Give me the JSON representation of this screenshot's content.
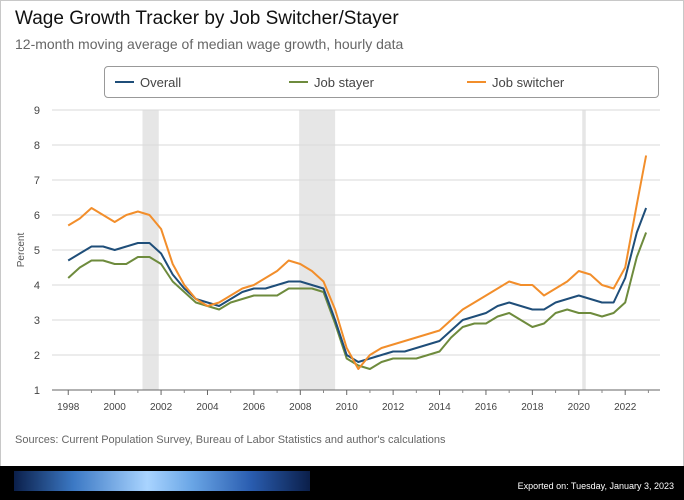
{
  "header": {
    "title": "Wage Growth Tracker by Job Switcher/Stayer",
    "subtitle": "12-month moving average of median wage growth, hourly data"
  },
  "legend": {
    "items": [
      {
        "label": "Overall",
        "color": "#1f4e79"
      },
      {
        "label": "Job stayer",
        "color": "#6e8b3d"
      },
      {
        "label": "Job switcher",
        "color": "#f28e2b"
      }
    ]
  },
  "footer": {
    "source": "Sources: Current Population Survey, Bureau of Labor Statistics and author's calculations",
    "export": "Exported on: Tuesday, January 3, 2023"
  },
  "chart_data": {
    "type": "line",
    "ylabel": "Percent",
    "xlim": [
      1997.3,
      2023.5
    ],
    "ylim": [
      1,
      9
    ],
    "yticks": [
      1,
      2,
      3,
      4,
      5,
      6,
      7,
      8,
      9
    ],
    "xticks": [
      "1998",
      "2000",
      "2002",
      "2004",
      "2006",
      "2008",
      "2010",
      "2012",
      "2014",
      "2016",
      "2018",
      "2020",
      "2022"
    ],
    "grid": true,
    "recessions": [
      [
        2001.2,
        2001.9
      ],
      [
        2007.95,
        2009.5
      ],
      [
        2020.15,
        2020.3
      ]
    ],
    "series": [
      {
        "name": "Overall",
        "color": "#1f4e79",
        "x": [
          1998,
          1998.5,
          1999,
          1999.5,
          2000,
          2000.5,
          2001,
          2001.5,
          2002,
          2002.5,
          2003,
          2003.5,
          2004,
          2004.5,
          2005,
          2005.5,
          2006,
          2006.5,
          2007,
          2007.5,
          2008,
          2008.5,
          2009,
          2009.5,
          2010,
          2010.5,
          2011,
          2011.5,
          2012,
          2012.5,
          2013,
          2013.5,
          2014,
          2014.5,
          2015,
          2015.5,
          2016,
          2016.5,
          2017,
          2017.5,
          2018,
          2018.5,
          2019,
          2019.5,
          2020,
          2020.5,
          2021,
          2021.5,
          2022,
          2022.5,
          2022.9
        ],
        "values": [
          4.7,
          4.9,
          5.1,
          5.1,
          5.0,
          5.1,
          5.2,
          5.2,
          4.9,
          4.3,
          3.9,
          3.6,
          3.5,
          3.4,
          3.6,
          3.8,
          3.9,
          3.9,
          4.0,
          4.1,
          4.1,
          4.0,
          3.9,
          3.0,
          2.0,
          1.8,
          1.9,
          2.0,
          2.1,
          2.1,
          2.2,
          2.3,
          2.4,
          2.7,
          3.0,
          3.1,
          3.2,
          3.4,
          3.5,
          3.4,
          3.3,
          3.3,
          3.5,
          3.6,
          3.7,
          3.6,
          3.5,
          3.5,
          4.2,
          5.5,
          6.2
        ]
      },
      {
        "name": "Job stayer",
        "color": "#6e8b3d",
        "x": [
          1998,
          1998.5,
          1999,
          1999.5,
          2000,
          2000.5,
          2001,
          2001.5,
          2002,
          2002.5,
          2003,
          2003.5,
          2004,
          2004.5,
          2005,
          2005.5,
          2006,
          2006.5,
          2007,
          2007.5,
          2008,
          2008.5,
          2009,
          2009.5,
          2010,
          2010.5,
          2011,
          2011.5,
          2012,
          2012.5,
          2013,
          2013.5,
          2014,
          2014.5,
          2015,
          2015.5,
          2016,
          2016.5,
          2017,
          2017.5,
          2018,
          2018.5,
          2019,
          2019.5,
          2020,
          2020.5,
          2021,
          2021.5,
          2022,
          2022.5,
          2022.9
        ],
        "values": [
          4.2,
          4.5,
          4.7,
          4.7,
          4.6,
          4.6,
          4.8,
          4.8,
          4.6,
          4.1,
          3.8,
          3.5,
          3.4,
          3.3,
          3.5,
          3.6,
          3.7,
          3.7,
          3.7,
          3.9,
          3.9,
          3.9,
          3.8,
          2.9,
          1.9,
          1.7,
          1.6,
          1.8,
          1.9,
          1.9,
          1.9,
          2.0,
          2.1,
          2.5,
          2.8,
          2.9,
          2.9,
          3.1,
          3.2,
          3.0,
          2.8,
          2.9,
          3.2,
          3.3,
          3.2,
          3.2,
          3.1,
          3.2,
          3.5,
          4.8,
          5.5
        ]
      },
      {
        "name": "Job switcher",
        "color": "#f28e2b",
        "x": [
          1998,
          1998.5,
          1999,
          1999.5,
          2000,
          2000.5,
          2001,
          2001.5,
          2002,
          2002.5,
          2003,
          2003.5,
          2004,
          2004.5,
          2005,
          2005.5,
          2006,
          2006.5,
          2007,
          2007.5,
          2008,
          2008.5,
          2009,
          2009.5,
          2010,
          2010.5,
          2011,
          2011.5,
          2012,
          2012.5,
          2013,
          2013.5,
          2014,
          2014.5,
          2015,
          2015.5,
          2016,
          2016.5,
          2017,
          2017.5,
          2018,
          2018.5,
          2019,
          2019.5,
          2020,
          2020.5,
          2021,
          2021.5,
          2022,
          2022.5,
          2022.9
        ],
        "values": [
          5.7,
          5.9,
          6.2,
          6.0,
          5.8,
          6.0,
          6.1,
          6.0,
          5.6,
          4.6,
          4.0,
          3.6,
          3.4,
          3.5,
          3.7,
          3.9,
          4.0,
          4.2,
          4.4,
          4.7,
          4.6,
          4.4,
          4.1,
          3.3,
          2.2,
          1.6,
          2.0,
          2.2,
          2.3,
          2.4,
          2.5,
          2.6,
          2.7,
          3.0,
          3.3,
          3.5,
          3.7,
          3.9,
          4.1,
          4.0,
          4.0,
          3.7,
          3.9,
          4.1,
          4.4,
          4.3,
          4.0,
          3.9,
          4.5,
          6.3,
          7.7
        ]
      }
    ]
  }
}
